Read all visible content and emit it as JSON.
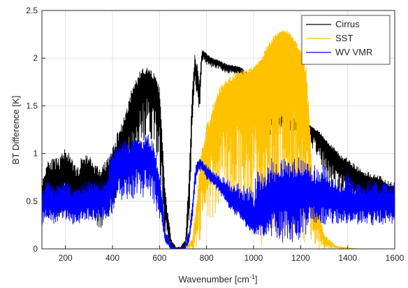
{
  "chart_data": {
    "type": "line",
    "xlabel": "Wavenumber [cm",
    "xlabel_sup": "-1",
    "xlabel_end": "]",
    "ylabel": "BT Difference [K]",
    "xlim": [
      100,
      1600
    ],
    "ylim": [
      0,
      2.5
    ],
    "xticks": [
      200,
      400,
      600,
      800,
      1000,
      1200,
      1400,
      1600
    ],
    "xtick_labels": [
      "200",
      "400",
      "600",
      "800",
      "1000",
      "1200",
      "1400",
      "1600"
    ],
    "yticks": [
      0,
      0.5,
      1,
      1.5,
      2,
      2.5
    ],
    "ytick_labels": [
      "0",
      "0.5",
      "1",
      "1.5",
      "2",
      "2.5"
    ],
    "grid": true,
    "legend_position": "top-right",
    "series": [
      {
        "name": "Cirrus",
        "color": "#000000",
        "x": [
          100,
          125,
          150,
          175,
          200,
          225,
          250,
          275,
          300,
          325,
          350,
          375,
          400,
          425,
          450,
          475,
          500,
          525,
          550,
          575,
          600,
          625,
          650,
          670,
          690,
          710,
          725,
          740,
          750,
          760,
          770,
          780,
          790,
          800,
          825,
          850,
          875,
          900,
          925,
          950,
          975,
          1000,
          1025,
          1050,
          1075,
          1100,
          1125,
          1150,
          1175,
          1200,
          1225,
          1250,
          1275,
          1300,
          1325,
          1350,
          1375,
          1400,
          1425,
          1450,
          1475,
          1500,
          1525,
          1550,
          1575,
          1600
        ],
        "values": [
          0.55,
          0.8,
          0.7,
          0.75,
          0.9,
          0.75,
          0.65,
          0.78,
          0.8,
          0.7,
          0.65,
          0.72,
          0.85,
          1.05,
          1.2,
          1.4,
          1.6,
          1.75,
          1.8,
          1.72,
          1.55,
          0.45,
          0.05,
          0.0,
          0.0,
          0.05,
          0.6,
          1.6,
          1.9,
          1.8,
          1.6,
          2.05,
          2.05,
          2.0,
          1.98,
          1.95,
          1.92,
          1.9,
          1.9,
          1.88,
          1.8,
          1.6,
          1.45,
          1.42,
          1.4,
          1.4,
          1.38,
          1.36,
          1.35,
          1.32,
          1.3,
          1.25,
          1.2,
          1.12,
          1.05,
          0.98,
          0.9,
          0.85,
          0.8,
          0.75,
          0.72,
          0.7,
          0.68,
          0.65,
          0.6,
          0.6
        ],
        "upper": [
          0.7,
          0.95,
          0.95,
          0.95,
          1.08,
          0.95,
          0.85,
          1.0,
          1.0,
          0.9,
          0.85,
          0.95,
          1.05,
          1.25,
          1.4,
          1.65,
          1.8,
          1.9,
          1.9,
          1.85,
          1.7,
          0.6,
          0.1,
          0.02,
          0.02,
          0.1,
          0.8,
          1.75,
          2.05,
          2.0,
          1.8,
          2.08,
          2.08,
          2.05,
          2.0,
          1.98,
          1.95,
          1.93,
          1.92,
          1.9,
          1.85,
          1.7,
          1.5,
          1.45,
          1.43,
          1.42,
          1.4,
          1.38,
          1.37,
          1.35,
          1.32,
          1.28,
          1.25,
          1.18,
          1.1,
          1.05,
          0.98,
          0.95,
          0.9,
          0.85,
          0.82,
          0.8,
          0.78,
          0.75,
          0.7,
          0.68
        ],
        "lower": [
          0.2,
          0.3,
          0.25,
          0.3,
          0.35,
          0.28,
          0.22,
          0.3,
          0.32,
          0.25,
          0.22,
          0.28,
          0.4,
          0.55,
          0.65,
          0.8,
          0.95,
          1.1,
          1.1,
          1.0,
          0.8,
          0.1,
          0.0,
          0.0,
          0.0,
          0.0,
          0.2,
          1.2,
          1.7,
          1.6,
          1.4,
          1.95,
          1.98,
          1.92,
          1.9,
          1.88,
          1.85,
          1.84,
          1.83,
          1.8,
          1.6,
          1.1,
          1.02,
          1.1,
          1.2,
          1.25,
          1.25,
          1.22,
          1.2,
          1.18,
          1.15,
          1.05,
          0.95,
          0.8,
          0.65,
          0.6,
          0.55,
          0.5,
          0.45,
          0.42,
          0.4,
          0.4,
          0.38,
          0.36,
          0.3,
          0.3
        ]
      },
      {
        "name": "SST",
        "color": "#ffc200",
        "x": [
          100,
          150,
          200,
          250,
          300,
          350,
          400,
          450,
          500,
          550,
          600,
          650,
          700,
          740,
          760,
          775,
          790,
          800,
          825,
          850,
          875,
          900,
          925,
          950,
          975,
          1000,
          1025,
          1050,
          1075,
          1100,
          1125,
          1150,
          1175,
          1200,
          1225,
          1240,
          1250,
          1275,
          1300,
          1350,
          1400,
          1450,
          1500,
          1550,
          1600
        ],
        "values": [
          0,
          0,
          0,
          0,
          0,
          0,
          0,
          0,
          0,
          0,
          0,
          0,
          0,
          0.05,
          0.4,
          0.8,
          1.0,
          1.1,
          1.35,
          1.55,
          1.65,
          1.7,
          1.75,
          1.78,
          1.8,
          1.85,
          1.9,
          2.0,
          2.1,
          2.2,
          2.25,
          2.22,
          2.1,
          2.0,
          1.7,
          1.0,
          0.6,
          0.3,
          0.1,
          0.02,
          0.01,
          0.0,
          0.0,
          0.0,
          0.0
        ],
        "upper": [
          0,
          0,
          0,
          0,
          0,
          0,
          0,
          0,
          0,
          0,
          0,
          0,
          0,
          0.1,
          0.6,
          1.0,
          1.2,
          1.3,
          1.5,
          1.68,
          1.75,
          1.82,
          1.85,
          1.88,
          1.9,
          1.92,
          1.98,
          2.1,
          2.2,
          2.28,
          2.3,
          2.28,
          2.2,
          2.1,
          1.9,
          1.3,
          0.8,
          0.5,
          0.15,
          0.03,
          0.01,
          0.0,
          0.0,
          0.0,
          0.0
        ],
        "lower": [
          0,
          0,
          0,
          0,
          0,
          0,
          0,
          0,
          0,
          0,
          0,
          0,
          0,
          0,
          0,
          0.1,
          0.2,
          0.2,
          0.3,
          0.4,
          0.4,
          0.35,
          0.3,
          0.25,
          0.2,
          0.1,
          0.05,
          0.02,
          0.02,
          0.02,
          0.02,
          0.02,
          0.02,
          0.02,
          0.02,
          0,
          0,
          0,
          0,
          0,
          0,
          0,
          0,
          0,
          0
        ]
      },
      {
        "name": "WV VMR",
        "color": "#0000ff",
        "x": [
          100,
          125,
          150,
          175,
          200,
          225,
          250,
          275,
          300,
          325,
          350,
          375,
          400,
          425,
          450,
          475,
          500,
          525,
          550,
          575,
          600,
          625,
          650,
          670,
          690,
          710,
          725,
          740,
          750,
          760,
          770,
          780,
          790,
          800,
          825,
          850,
          875,
          900,
          925,
          950,
          975,
          1000,
          1025,
          1050,
          1075,
          1100,
          1125,
          1150,
          1175,
          1200,
          1225,
          1250,
          1275,
          1300,
          1325,
          1350,
          1375,
          1400,
          1425,
          1450,
          1475,
          1500,
          1525,
          1550,
          1575,
          1600
        ],
        "values": [
          0.45,
          0.5,
          0.45,
          0.5,
          0.5,
          0.45,
          0.45,
          0.48,
          0.5,
          0.48,
          0.5,
          0.55,
          0.75,
          0.9,
          0.95,
          0.9,
          1.0,
          0.95,
          1.0,
          0.9,
          0.6,
          0.1,
          0.02,
          0.0,
          0.0,
          0.02,
          0.1,
          0.4,
          0.7,
          0.85,
          0.9,
          0.88,
          0.85,
          0.8,
          0.75,
          0.68,
          0.6,
          0.5,
          0.45,
          0.4,
          0.3,
          0.25,
          0.3,
          0.4,
          0.5,
          0.55,
          0.55,
          0.58,
          0.58,
          0.6,
          0.58,
          0.55,
          0.55,
          0.55,
          0.52,
          0.5,
          0.48,
          0.48,
          0.48,
          0.48,
          0.48,
          0.48,
          0.48,
          0.48,
          0.48,
          0.48
        ],
        "upper": [
          0.6,
          0.75,
          0.65,
          0.7,
          0.72,
          0.65,
          0.65,
          0.7,
          0.72,
          0.7,
          0.72,
          0.8,
          1.05,
          1.1,
          1.15,
          1.1,
          1.2,
          1.15,
          1.22,
          1.1,
          0.85,
          0.2,
          0.04,
          0.01,
          0.01,
          0.04,
          0.2,
          0.5,
          0.85,
          0.92,
          0.95,
          0.93,
          0.9,
          0.88,
          0.82,
          0.78,
          0.75,
          0.72,
          0.7,
          0.68,
          0.65,
          0.7,
          0.85,
          0.9,
          0.95,
          0.9,
          0.95,
          0.95,
          1.0,
          0.95,
          0.92,
          0.9,
          0.85,
          0.88,
          0.8,
          0.75,
          0.72,
          0.8,
          0.72,
          0.7,
          0.7,
          0.72,
          0.7,
          0.7,
          0.72,
          0.7
        ],
        "lower": [
          0.25,
          0.3,
          0.25,
          0.3,
          0.3,
          0.25,
          0.25,
          0.28,
          0.3,
          0.28,
          0.3,
          0.3,
          0.35,
          0.45,
          0.5,
          0.45,
          0.55,
          0.5,
          0.55,
          0.45,
          0.3,
          0.05,
          0.0,
          0.0,
          0.0,
          0.0,
          0.05,
          0.3,
          0.6,
          0.78,
          0.82,
          0.8,
          0.78,
          0.72,
          0.65,
          0.6,
          0.5,
          0.4,
          0.35,
          0.3,
          0.2,
          0.15,
          0.15,
          0.1,
          0.1,
          0.05,
          0.05,
          0.05,
          0.05,
          0.1,
          0.15,
          0.2,
          0.25,
          0.25,
          0.25,
          0.25,
          0.25,
          0.25,
          0.25,
          0.25,
          0.25,
          0.25,
          0.25,
          0.25,
          0.25,
          0.25
        ]
      }
    ]
  }
}
